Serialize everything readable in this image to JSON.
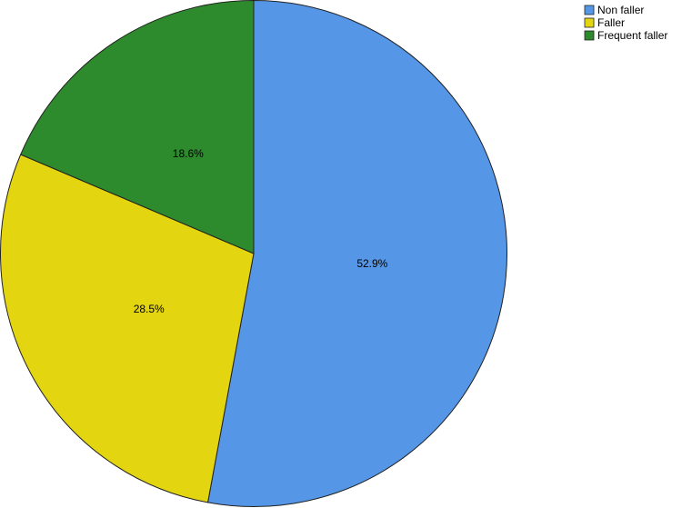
{
  "chart_data": {
    "type": "pie",
    "categories": [
      "Non faller",
      "Faller",
      "Frequent faller"
    ],
    "values": [
      52.9,
      28.5,
      18.6
    ],
    "value_labels": [
      "52.9%",
      "28.5%",
      "18.6%"
    ],
    "colors": [
      "#5596e6",
      "#e3d510",
      "#2d8a2d"
    ],
    "legend": "top-right"
  }
}
